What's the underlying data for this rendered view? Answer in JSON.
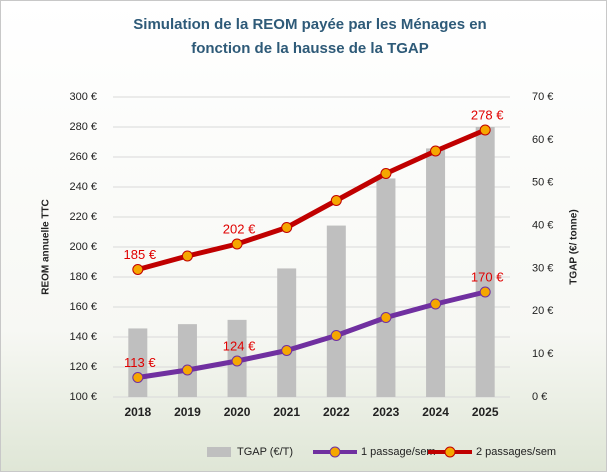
{
  "chart_data": {
    "type": "combo",
    "title": "Simulation de la REOM payée par les Ménages en",
    "subtitle": "fonction de la hausse de la TGAP",
    "y_label": "REOM annuelle TTC",
    "y2_label": "TGAP (€/ tonne)",
    "categories": [
      "2018",
      "2019",
      "2020",
      "2021",
      "2022",
      "2023",
      "2024",
      "2025"
    ],
    "series": [
      {
        "name": "TGAP (€/T)",
        "type": "bar",
        "axis": "y2",
        "color": "#bfbfbf",
        "values": [
          16,
          17,
          18,
          30,
          40,
          51,
          58,
          63
        ]
      },
      {
        "name": "1 passage/sem",
        "type": "line",
        "color": "#7030a0",
        "marker_color": "#f5a700",
        "values": [
          113,
          118,
          124,
          131,
          141,
          153,
          162,
          170
        ],
        "value_labels": [
          "113 €",
          null,
          "124 €",
          null,
          null,
          null,
          null,
          "170 €"
        ]
      },
      {
        "name": "2 passages/sem",
        "type": "line",
        "color": "#c00000",
        "marker_color": "#f5a700",
        "values": [
          185,
          194,
          202,
          213,
          231,
          249,
          264,
          278
        ],
        "value_labels": [
          "185 €",
          null,
          "202 €",
          null,
          null,
          null,
          null,
          "278 €"
        ]
      }
    ],
    "ylim": [
      100,
      300
    ],
    "yticks": [
      {
        "value": 100,
        "label": "100 €"
      },
      {
        "value": 120,
        "label": "120 €"
      },
      {
        "value": 140,
        "label": "140 €"
      },
      {
        "value": 160,
        "label": "160 €"
      },
      {
        "value": 180,
        "label": "180 €"
      },
      {
        "value": 200,
        "label": "200 €"
      },
      {
        "value": 220,
        "label": "220 €"
      },
      {
        "value": 240,
        "label": "240 €"
      },
      {
        "value": 260,
        "label": "260 €"
      },
      {
        "value": 280,
        "label": "280 €"
      },
      {
        "value": 300,
        "label": "300 €"
      }
    ],
    "y2lim": [
      0,
      70
    ],
    "y2ticks": [
      {
        "value": 0,
        "label": "0 €"
      },
      {
        "value": 10,
        "label": "10 €"
      },
      {
        "value": 20,
        "label": "20 €"
      },
      {
        "value": 30,
        "label": "30 €"
      },
      {
        "value": 40,
        "label": "40 €"
      },
      {
        "value": 50,
        "label": "50 €"
      },
      {
        "value": 60,
        "label": "60 €"
      },
      {
        "value": 70,
        "label": "70 €"
      }
    ],
    "grid": true,
    "legend": "bottom"
  }
}
